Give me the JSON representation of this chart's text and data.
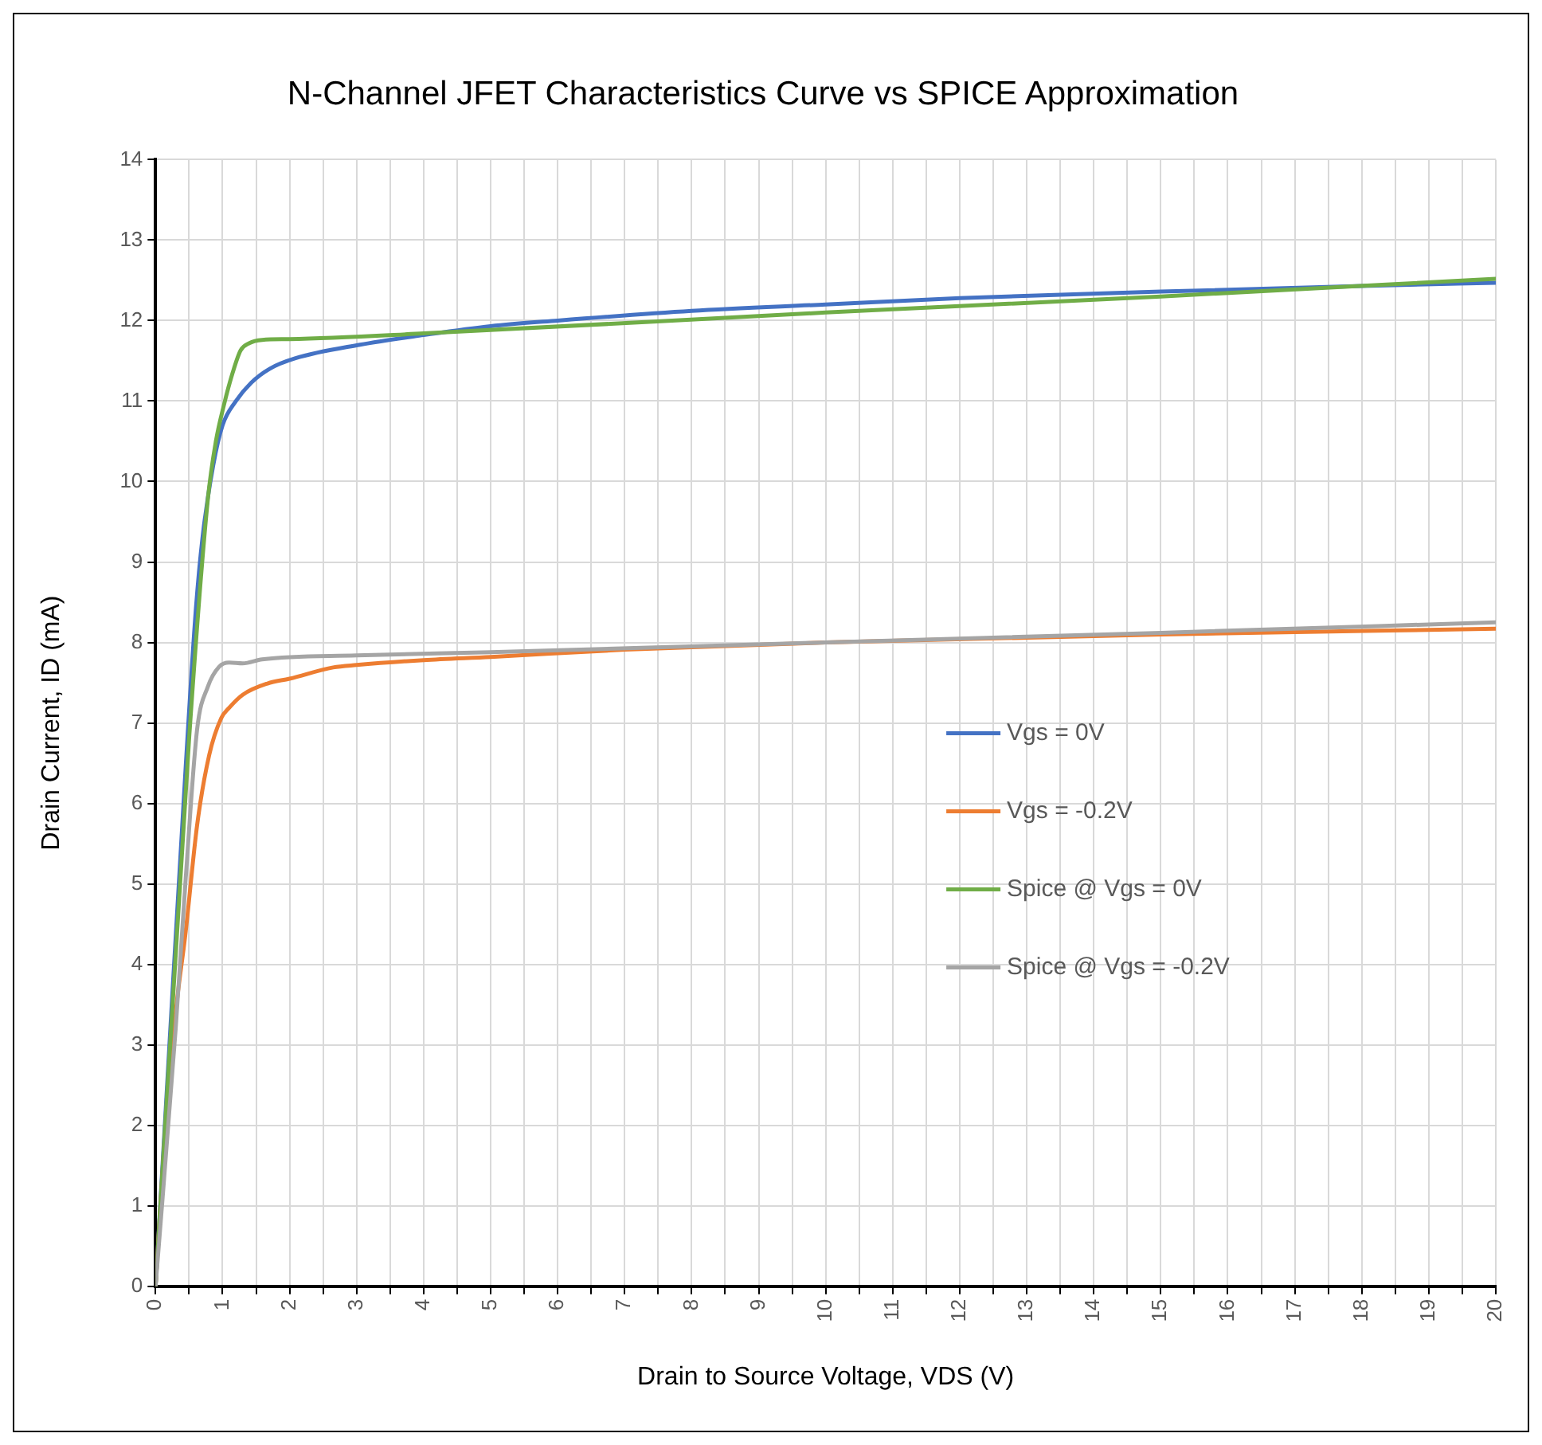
{
  "chart_data": {
    "type": "line",
    "title": "N-Channel JFET Characteristics Curve vs SPICE Approximation",
    "xlabel": "Drain to Source Voltage, VDS (V)",
    "ylabel": "Drain Current, ID (mA)",
    "xlim": [
      0,
      20
    ],
    "xticks": [
      0,
      {
        "value": 0.5,
        "label": null
      },
      1,
      {
        "value": 1.5,
        "label": null
      },
      2,
      {
        "value": 2.5,
        "label": null
      },
      3,
      {
        "value": 3.5,
        "label": null
      },
      4,
      {
        "value": 4.5,
        "label": null
      },
      5,
      {
        "value": 5.5,
        "label": null
      },
      6,
      {
        "value": 6.5,
        "label": null
      },
      7,
      {
        "value": 7.5,
        "label": null
      },
      8,
      {
        "value": 8.5,
        "label": null
      },
      9,
      {
        "value": 9.5,
        "label": null
      },
      10,
      {
        "value": 10.5,
        "label": null
      },
      11,
      {
        "value": 11.5,
        "label": null
      },
      12,
      {
        "value": 12.5,
        "label": null
      },
      13,
      {
        "value": 13.5,
        "label": null
      },
      14,
      {
        "value": 14.5,
        "label": null
      },
      15,
      {
        "value": 15.5,
        "label": null
      },
      16,
      {
        "value": 16.5,
        "label": null
      },
      17,
      {
        "value": 17.5,
        "label": null
      },
      18,
      {
        "value": 18.5,
        "label": null
      },
      19,
      {
        "value": 19.5,
        "label": null
      },
      20
    ],
    "ylim": [
      0,
      14
    ],
    "yticks": [
      0,
      1,
      2,
      3,
      4,
      5,
      6,
      7,
      8,
      9,
      10,
      11,
      12,
      13,
      14
    ],
    "grid": true,
    "legend": "right",
    "marker": "none",
    "line_style": "solid",
    "series": [
      {
        "name": "Vgs = 0V",
        "color": "#4472c4",
        "x": [
          0,
          0.2,
          0.45,
          0.6,
          0.7,
          0.86,
          1.0,
          1.2,
          1.43,
          1.7,
          2.08,
          3.05,
          4,
          5,
          6,
          8,
          10,
          12,
          15,
          18,
          20
        ],
        "values": [
          0,
          2.9,
          6.46,
          8.4,
          9.3,
          10.2,
          10.7,
          11.0,
          11.23,
          11.4,
          11.53,
          11.7,
          11.82,
          11.93,
          12.0,
          12.12,
          12.2,
          12.28,
          12.36,
          12.43,
          12.47
        ]
      },
      {
        "name": "Vgs = -0.2V",
        "color": "#ed7d31",
        "x": [
          0,
          0.13,
          0.3,
          0.45,
          0.62,
          0.8,
          0.98,
          1.1,
          1.3,
          1.67,
          2,
          2.65,
          3,
          4,
          5,
          7,
          10,
          15,
          20
        ],
        "values": [
          0,
          1.76,
          3.4,
          4.41,
          5.73,
          6.6,
          7.06,
          7.19,
          7.35,
          7.49,
          7.55,
          7.69,
          7.72,
          7.78,
          7.82,
          7.91,
          8.0,
          8.1,
          8.17
        ]
      },
      {
        "name": "Spice @ Vgs = 0V",
        "color": "#70ad47",
        "x": [
          0,
          0.5,
          0.78,
          0.9,
          1.02,
          1.15,
          1.27,
          1.4,
          1.59,
          2,
          4,
          10,
          15,
          20
        ],
        "values": [
          0,
          6.8,
          9.78,
          10.5,
          10.95,
          11.35,
          11.63,
          11.72,
          11.76,
          11.77,
          11.84,
          12.1,
          12.3,
          12.52
        ]
      },
      {
        "name": "Spice @ Vgs = -0.2V",
        "color": "#a5a5a5",
        "x": [
          0,
          0.3,
          0.45,
          0.62,
          0.78,
          0.95,
          1.1,
          1.3,
          1.59,
          3,
          5,
          10,
          15,
          20
        ],
        "values": [
          0,
          3.2,
          5.07,
          6.92,
          7.45,
          7.7,
          7.75,
          7.74,
          7.79,
          7.84,
          7.88,
          8.0,
          8.12,
          8.25
        ]
      }
    ]
  }
}
